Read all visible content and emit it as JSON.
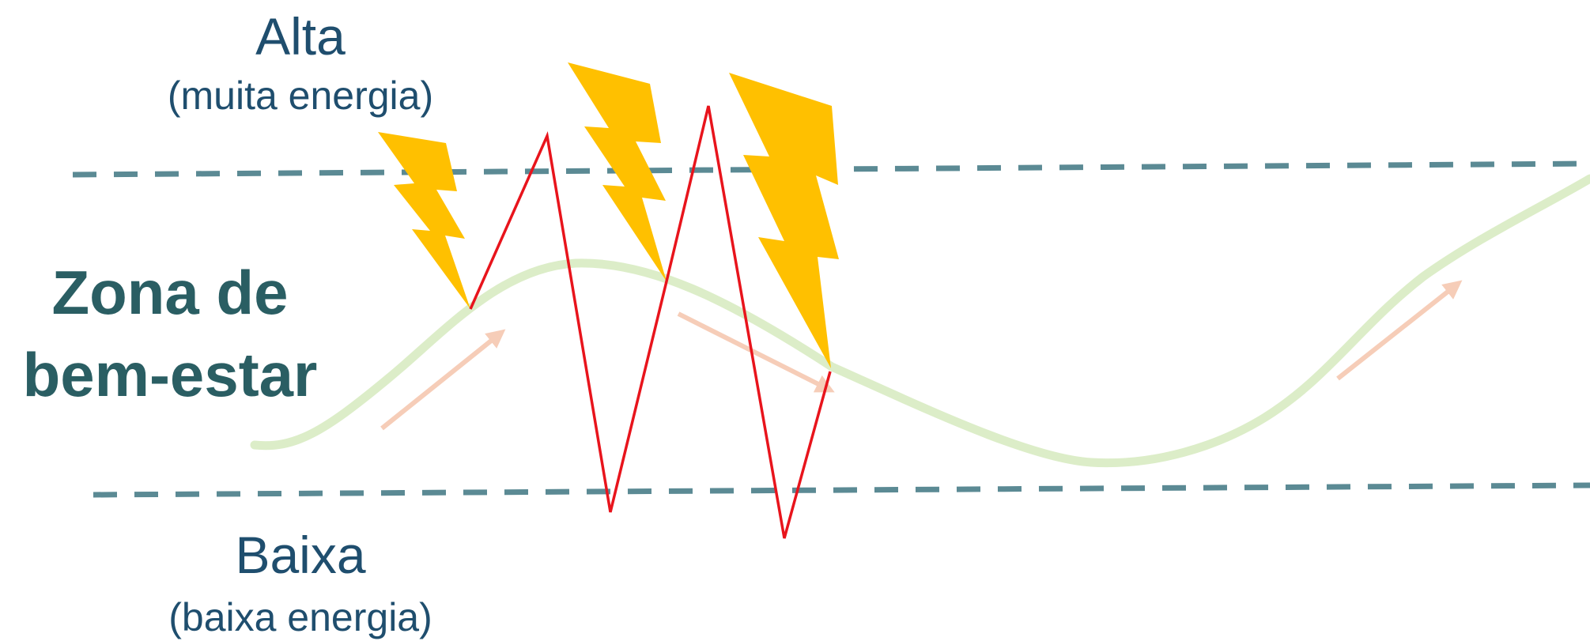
{
  "labels": {
    "high_title": "Alta",
    "high_subtitle": "(muita energia)",
    "zone_line1": "Zona de",
    "zone_line2": "bem-estar",
    "low_title": "Baixa",
    "low_subtitle": "(baixa energia)"
  },
  "colors": {
    "text_dark_blue": "#1f4e6e",
    "zone_text": "#2a5e63",
    "dashed_lines": "#5b8a94",
    "wellbeing_curve": "#dcedc8",
    "stress_zigzag": "#e8141c",
    "lightning": "#ffc000",
    "arrows": "#f6cdb8"
  },
  "icons": [
    "lightning-bolt-icon",
    "arrow-icon"
  ]
}
